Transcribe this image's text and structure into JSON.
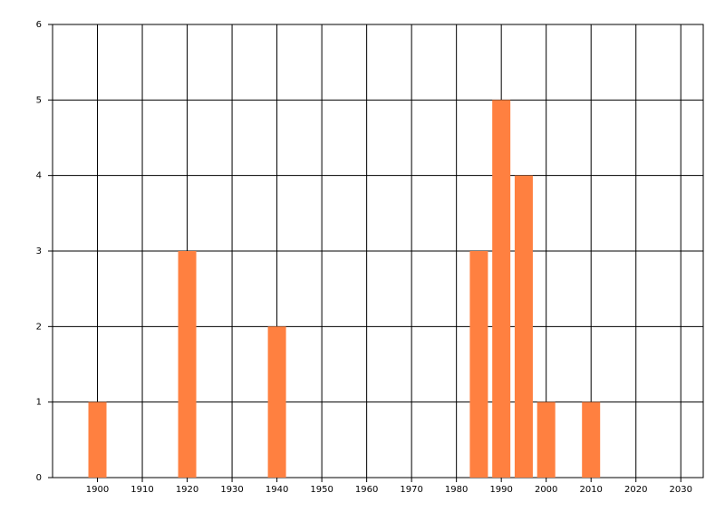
{
  "chart_data": {
    "type": "bar",
    "x": [
      1900,
      1920,
      1940,
      1985,
      1990,
      1995,
      2000,
      2010
    ],
    "values": [
      1,
      3,
      2,
      3,
      5,
      4,
      1,
      1
    ],
    "color": "#ff8040",
    "xlim": [
      1890,
      2035
    ],
    "xticks": [
      1900,
      1910,
      1920,
      1930,
      1940,
      1950,
      1960,
      1970,
      1980,
      1990,
      2000,
      2010,
      2020,
      2030
    ],
    "ylim": [
      0,
      6
    ],
    "yticks": [
      0,
      1,
      2,
      3,
      4,
      5,
      6
    ],
    "grid": true
  }
}
